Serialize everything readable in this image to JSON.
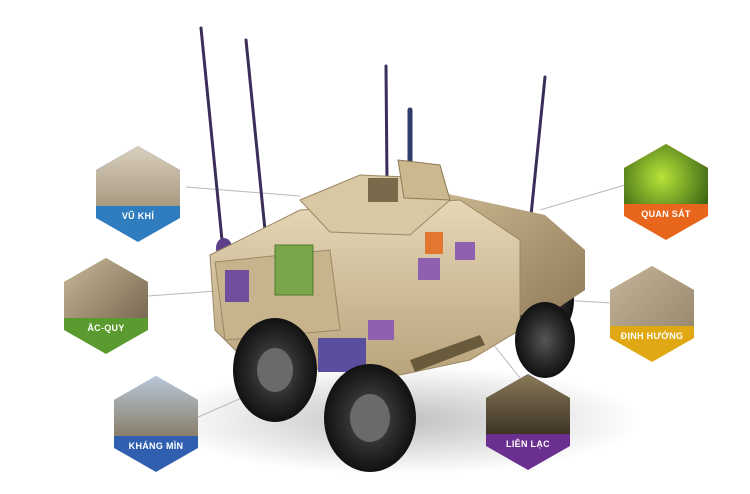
{
  "features": [
    {
      "id": "weapons",
      "label": "VŨ KHÍ",
      "color": "#2f7dbf",
      "icon": "weapon-turret-icon"
    },
    {
      "id": "battery",
      "label": "ẮC-QUY",
      "color": "#5a9a2e",
      "icon": "battery-phone-icon"
    },
    {
      "id": "mine",
      "label": "KHÁNG MÌN",
      "color": "#2f5fae",
      "icon": "convoy-icon"
    },
    {
      "id": "observation",
      "label": "QUAN SÁT",
      "color": "#e8661c",
      "icon": "night-vision-icon"
    },
    {
      "id": "navigation",
      "label": "ĐỊNH HƯỚNG",
      "color": "#e0a814",
      "icon": "map-icon"
    },
    {
      "id": "comms",
      "label": "LIÊN LẠC",
      "color": "#6b2f8f",
      "icon": "radio-interior-icon"
    }
  ]
}
